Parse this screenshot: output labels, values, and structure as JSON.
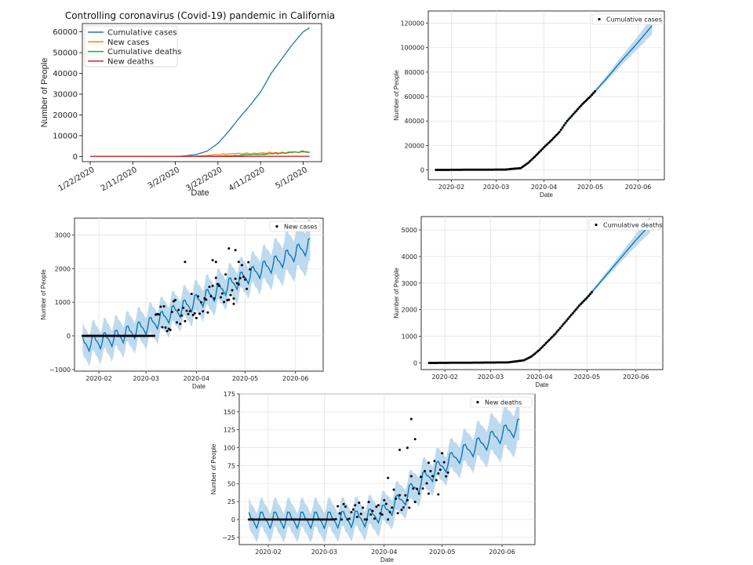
{
  "colors": {
    "cumulative_cases": "#1f77b4",
    "new_cases": "#ff7f0e",
    "cumulative_deaths": "#2ca02c",
    "new_deaths": "#d62728",
    "forecast_line": "#0072B2",
    "forecast_band": "#a8cde8",
    "points": "#000000"
  },
  "chart_data": [
    {
      "id": "overview",
      "type": "line",
      "title": "Controlling coronavirus (Covid-19) pandemic in California",
      "xlabel": "Date",
      "ylabel": "Number of People",
      "x_ticks": [
        "1/22/2020",
        "2/11/2020",
        "3/2/2020",
        "3/22/2020",
        "4/11/2020",
        "5/1/2020"
      ],
      "y_ticks": [
        0,
        10000,
        20000,
        30000,
        40000,
        50000,
        60000
      ],
      "ylim": [
        -2500,
        64000
      ],
      "x_range_days": [
        0,
        105
      ],
      "legend": [
        "Cumulative cases",
        "New cases",
        "Cumulative deaths",
        "New deaths"
      ],
      "legend_position": "top-left",
      "series": [
        {
          "name": "Cumulative cases",
          "x": [
            0,
            20,
            40,
            45,
            50,
            55,
            60,
            65,
            70,
            75,
            80,
            85,
            90,
            95,
            100,
            103
          ],
          "values": [
            0,
            5,
            50,
            300,
            1000,
            2600,
            6300,
            12000,
            18500,
            24500,
            31000,
            40000,
            47000,
            54000,
            60000,
            62000
          ]
        },
        {
          "name": "New cases",
          "x": [
            0,
            40,
            50,
            55,
            60,
            65,
            70,
            75,
            80,
            85,
            90,
            95,
            100,
            103
          ],
          "values": [
            0,
            10,
            200,
            500,
            900,
            1300,
            1500,
            1300,
            1600,
            1800,
            1900,
            2000,
            2200,
            2100
          ]
        },
        {
          "name": "Cumulative deaths",
          "x": [
            0,
            50,
            60,
            70,
            80,
            90,
            100,
            103
          ],
          "values": [
            0,
            20,
            150,
            500,
            1000,
            1600,
            2300,
            2500
          ]
        },
        {
          "name": "New deaths",
          "x": [
            0,
            50,
            70,
            90,
            103
          ],
          "values": [
            0,
            5,
            30,
            70,
            80
          ]
        }
      ]
    },
    {
      "id": "forecast-cumulative-cases",
      "type": "line",
      "title": "",
      "xlabel": "Date",
      "ylabel": "Number of People",
      "legend": [
        "Cumulative cases"
      ],
      "legend_position": "top-right",
      "x_ticks": [
        "2020-02",
        "2020-03",
        "2020-04",
        "2020-05",
        "2020-06"
      ],
      "y_ticks": [
        0,
        20000,
        40000,
        60000,
        80000,
        100000,
        120000
      ],
      "ylim": [
        -8000,
        130000
      ],
      "forecast": {
        "x": [
          0,
          45,
          55,
          60,
          65,
          70,
          75,
          80,
          85,
          90,
          95,
          100,
          110,
          120,
          130,
          140
        ],
        "values": [
          0,
          300,
          1500,
          6000,
          12000,
          18500,
          24500,
          31000,
          40000,
          47000,
          54000,
          60000,
          74000,
          89000,
          103000,
          118000
        ],
        "band_width": [
          400,
          400,
          500,
          700,
          800,
          900,
          900,
          1000,
          1000,
          1100,
          1200,
          1400,
          2200,
          3500,
          5000,
          7000
        ]
      },
      "observed": {
        "x": [
          0,
          103
        ],
        "follows": "forecast"
      }
    },
    {
      "id": "forecast-new-cases",
      "type": "line",
      "title": "",
      "xlabel": "Date",
      "ylabel": "Number of People",
      "legend": [
        "New cases"
      ],
      "legend_position": "top-right",
      "x_ticks": [
        "2020-02",
        "2020-03",
        "2020-04",
        "2020-05",
        "2020-06"
      ],
      "y_ticks": [
        -1000,
        0,
        1000,
        2000,
        3000
      ],
      "ylim": [
        -1050,
        3500
      ],
      "trend": {
        "x": [
          0,
          20,
          40,
          60,
          80,
          100,
          120,
          140
        ],
        "values": [
          -250,
          -50,
          300,
          800,
          1250,
          1750,
          2200,
          2700
        ]
      },
      "season_amplitude": 200,
      "band_half_width": 450,
      "outliers": [
        [
          63,
          2200
        ],
        [
          80,
          2250
        ],
        [
          82,
          2200
        ],
        [
          90,
          2600
        ],
        [
          94,
          2550
        ],
        [
          96,
          2200
        ],
        [
          93,
          950
        ]
      ]
    },
    {
      "id": "forecast-cumulative-deaths",
      "type": "line",
      "title": "",
      "xlabel": "Date",
      "ylabel": "Number of People",
      "legend": [
        "Cumulative deaths"
      ],
      "legend_position": "top-right",
      "x_ticks": [
        "2020-02",
        "2020-03",
        "2020-04",
        "2020-05",
        "2020-06"
      ],
      "y_ticks": [
        0,
        1000,
        2000,
        3000,
        4000,
        5000
      ],
      "ylim": [
        -250,
        5500
      ],
      "forecast": {
        "x": [
          0,
          50,
          60,
          65,
          70,
          75,
          80,
          85,
          90,
          95,
          100,
          110,
          120,
          130,
          140
        ],
        "values": [
          0,
          20,
          100,
          250,
          500,
          800,
          1100,
          1450,
          1800,
          2150,
          2450,
          3150,
          3850,
          4550,
          5200
        ],
        "band_width": [
          20,
          20,
          20,
          25,
          30,
          40,
          40,
          50,
          50,
          60,
          70,
          100,
          150,
          220,
          300
        ]
      }
    },
    {
      "id": "forecast-new-deaths",
      "type": "line",
      "title": "",
      "xlabel": "Date",
      "ylabel": "Number of People",
      "legend": [
        "New deaths"
      ],
      "legend_position": "top-right",
      "x_ticks": [
        "2020-02",
        "2020-03",
        "2020-04",
        "2020-05",
        "2020-06"
      ],
      "y_ticks": [
        -25,
        0,
        25,
        50,
        75,
        100,
        125,
        150,
        175
      ],
      "ylim": [
        -35,
        175
      ],
      "trend": {
        "x": [
          0,
          40,
          60,
          70,
          80,
          90,
          100,
          110,
          120,
          130,
          140
        ],
        "values": [
          0,
          0,
          2,
          10,
          30,
          55,
          75,
          92,
          105,
          118,
          130
        ]
      },
      "season_amplitude": 10,
      "band_half_width": 20,
      "outliers": [
        [
          84,
          140
        ],
        [
          86,
          112
        ],
        [
          93,
          36
        ],
        [
          98,
          35
        ],
        [
          82,
          100
        ],
        [
          78,
          97
        ],
        [
          72,
          58
        ]
      ]
    }
  ]
}
